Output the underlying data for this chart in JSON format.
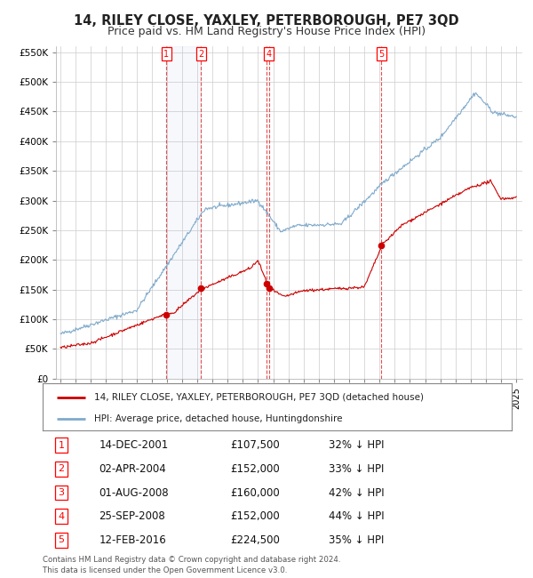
{
  "title": "14, RILEY CLOSE, YAXLEY, PETERBOROUGH, PE7 3QD",
  "subtitle": "Price paid vs. HM Land Registry's House Price Index (HPI)",
  "footer": "Contains HM Land Registry data © Crown copyright and database right 2024.\nThis data is licensed under the Open Government Licence v3.0.",
  "legend_property": "14, RILEY CLOSE, YAXLEY, PETERBOROUGH, PE7 3QD (detached house)",
  "legend_hpi": "HPI: Average price, detached house, Huntingdonshire",
  "property_color": "#cc0000",
  "hpi_color": "#7faacc",
  "table": [
    {
      "num": "1",
      "date": "14-DEC-2001",
      "price": "£107,500",
      "note": "32% ↓ HPI"
    },
    {
      "num": "2",
      "date": "02-APR-2004",
      "price": "£152,000",
      "note": "33% ↓ HPI"
    },
    {
      "num": "3",
      "date": "01-AUG-2008",
      "price": "£160,000",
      "note": "42% ↓ HPI"
    },
    {
      "num": "4",
      "date": "25-SEP-2008",
      "price": "£152,000",
      "note": "44% ↓ HPI"
    },
    {
      "num": "5",
      "date": "12-FEB-2016",
      "price": "£224,500",
      "note": "35% ↓ HPI"
    }
  ],
  "sale_markers": [
    {
      "label": "1",
      "year": 2001.96,
      "price": 107500
    },
    {
      "label": "2",
      "year": 2004.25,
      "price": 152000
    },
    {
      "label": "3",
      "year": 2008.58,
      "price": 160000
    },
    {
      "label": "4",
      "year": 2008.73,
      "price": 152000
    },
    {
      "label": "5",
      "year": 2016.12,
      "price": 224500
    }
  ],
  "vlines": [
    2001.96,
    2004.25,
    2008.58,
    2008.73,
    2016.12
  ],
  "shade_regions": [
    [
      2001.96,
      2004.25
    ]
  ],
  "top_labels": {
    "1": 2001.96,
    "2": 2004.25,
    "4": 2008.73,
    "5": 2016.12
  },
  "ylim": [
    0,
    560000
  ],
  "yticks": [
    0,
    50000,
    100000,
    150000,
    200000,
    250000,
    300000,
    350000,
    400000,
    450000,
    500000,
    550000
  ],
  "xlim_start": 1994.7,
  "xlim_end": 2025.4,
  "background_color": "#ffffff",
  "grid_color": "#cccccc",
  "title_fontsize": 10.5,
  "subtitle_fontsize": 9
}
